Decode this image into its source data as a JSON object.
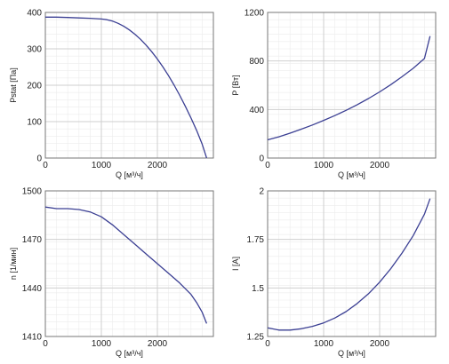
{
  "colors": {
    "curve": "#3b3f93",
    "grid_major": "#cfcfcf",
    "grid_minor": "#ececec",
    "axis": "#777777",
    "text": "#222222"
  },
  "chart_data": [
    {
      "type": "line",
      "title": "",
      "xlabel": "Q [м³/ч]",
      "ylabel": "Pstat [Па]",
      "xlim": [
        0,
        3000
      ],
      "ylim": [
        0,
        400
      ],
      "xticks": [
        0,
        1000,
        2000
      ],
      "yticks": [
        0,
        100,
        200,
        300,
        400
      ],
      "grid": true,
      "series": [
        {
          "x": [
            0,
            200,
            400,
            600,
            800,
            1000,
            1100,
            1200,
            1300,
            1400,
            1500,
            1600,
            1700,
            1800,
            1900,
            2000,
            2100,
            2200,
            2300,
            2400,
            2500,
            2600,
            2700,
            2800,
            2880
          ],
          "y": [
            387,
            387,
            386,
            385,
            384,
            382,
            380,
            376,
            370,
            362,
            352,
            340,
            326,
            310,
            292,
            272,
            250,
            226,
            200,
            172,
            142,
            110,
            76,
            38,
            0
          ]
        }
      ]
    },
    {
      "type": "line",
      "title": "",
      "xlabel": "Q [м³/ч]",
      "ylabel": "P [Вт]",
      "xlim": [
        0,
        3000
      ],
      "ylim": [
        0,
        1200
      ],
      "xticks": [
        0,
        1000,
        2000
      ],
      "yticks": [
        0,
        400,
        800,
        1200
      ],
      "grid": true,
      "series": [
        {
          "x": [
            0,
            200,
            400,
            600,
            800,
            1000,
            1200,
            1400,
            1600,
            1800,
            2000,
            2200,
            2400,
            2600,
            2800,
            2900
          ],
          "y": [
            150,
            175,
            205,
            238,
            272,
            310,
            350,
            393,
            440,
            490,
            545,
            605,
            670,
            740,
            820,
            1005
          ]
        }
      ]
    },
    {
      "type": "line",
      "title": "",
      "xlabel": "Q [м³/ч]",
      "ylabel": "n [1/мин]",
      "xlim": [
        0,
        3000
      ],
      "ylim": [
        1410,
        1500
      ],
      "xticks": [
        0,
        1000,
        2000
      ],
      "yticks": [
        1410,
        1440,
        1470,
        1500
      ],
      "grid": true,
      "series": [
        {
          "x": [
            0,
            200,
            400,
            600,
            800,
            1000,
            1200,
            1400,
            1600,
            1800,
            2000,
            2200,
            2400,
            2600,
            2700,
            2800,
            2880
          ],
          "y": [
            1490,
            1489,
            1489,
            1488.5,
            1487,
            1484,
            1479,
            1473,
            1467,
            1461,
            1455,
            1449,
            1443,
            1436,
            1431,
            1425,
            1418
          ]
        }
      ]
    },
    {
      "type": "line",
      "title": "",
      "xlabel": "Q [м³/ч]",
      "ylabel": "I [A]",
      "xlim": [
        0,
        3000
      ],
      "ylim": [
        1.25,
        2
      ],
      "xticks": [
        0,
        1000,
        2000
      ],
      "yticks": [
        1.25,
        1.5,
        1.75,
        2
      ],
      "ytick_labels": [
        "1.25",
        "1.5",
        "1.75",
        "2"
      ],
      "grid": true,
      "series": [
        {
          "x": [
            0,
            200,
            400,
            600,
            800,
            1000,
            1200,
            1400,
            1600,
            1800,
            2000,
            2200,
            2400,
            2600,
            2800,
            2900
          ],
          "y": [
            1.295,
            1.283,
            1.283,
            1.29,
            1.302,
            1.32,
            1.345,
            1.378,
            1.42,
            1.47,
            1.53,
            1.6,
            1.68,
            1.77,
            1.88,
            1.96
          ]
        }
      ]
    }
  ]
}
